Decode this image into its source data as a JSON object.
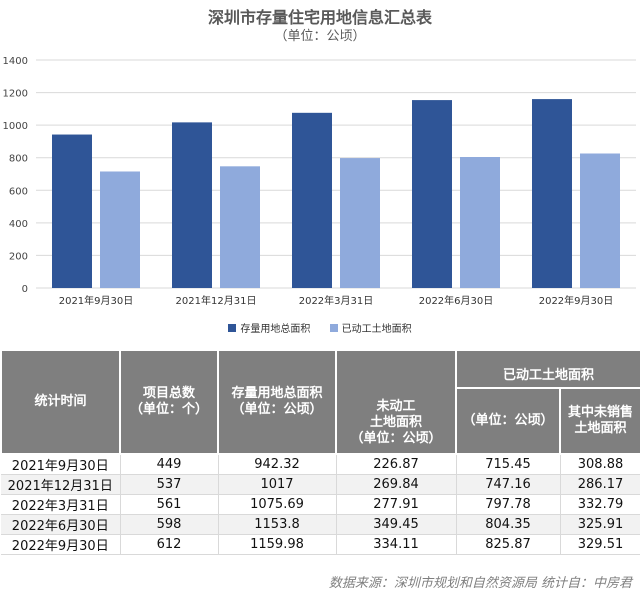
{
  "chart_data": {
    "type": "bar",
    "title": "深圳市存量住宅用地信息汇总表",
    "subtitle": "（单位：公顷）",
    "categories": [
      "2021年9月30日",
      "2021年12月31日",
      "2022年3月31日",
      "2022年6月30日",
      "2022年9月30日"
    ],
    "series": [
      {
        "name": "存量用地总面积",
        "values": [
          942.32,
          1017,
          1075.69,
          1153.8,
          1159.98
        ],
        "color": "#2f5597"
      },
      {
        "name": "已动工土地面积",
        "values": [
          715.45,
          747.16,
          797.78,
          804.35,
          825.87
        ],
        "color": "#8faadc"
      }
    ],
    "ylim": [
      0,
      1400
    ],
    "yticks": [
      0,
      200,
      400,
      600,
      800,
      1000,
      1200,
      1400
    ],
    "grid": true,
    "legend_position": "bottom"
  },
  "table": {
    "headers": {
      "time": "统计时间",
      "count_line1": "项目总数",
      "count_line2": "（单位：个）",
      "total_line1": "存量用地总面积",
      "total_line2": "（单位：公顷）",
      "not_started_line1": "未动工",
      "not_started_line2": "土地面积",
      "not_started_line3": "（单位：公顷）",
      "started_group": "已动工土地面积",
      "started_unit": "（单位：公顷）",
      "unsold_line1": "其中未销售",
      "unsold_line2": "土地面积"
    },
    "rows": [
      [
        "2021年9月30日",
        "449",
        "942.32",
        "226.87",
        "715.45",
        "308.88"
      ],
      [
        "2021年12月31日",
        "537",
        "1017",
        "269.84",
        "747.16",
        "286.17"
      ],
      [
        "2022年3月31日",
        "561",
        "1075.69",
        "277.91",
        "797.78",
        "332.79"
      ],
      [
        "2022年6月30日",
        "598",
        "1153.8",
        "349.45",
        "804.35",
        "325.91"
      ],
      [
        "2022年9月30日",
        "612",
        "1159.98",
        "334.11",
        "825.87",
        "329.51"
      ]
    ]
  },
  "source": "数据来源：深圳市规划和自然资源局 统计自：中房君"
}
